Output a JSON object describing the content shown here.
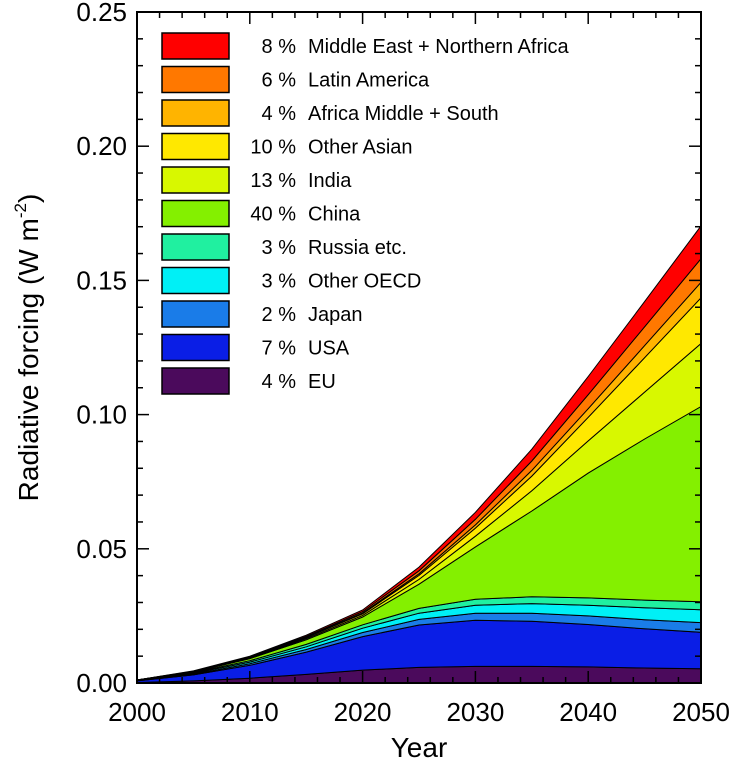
{
  "chart_data": {
    "type": "area",
    "stacked": true,
    "title": "",
    "xlabel": "Year",
    "ylabel_main": "Radiative forcing (W m",
    "ylabel_sup": "-2",
    "ylabel_close": ")",
    "xlim": [
      2000,
      2050
    ],
    "ylim": [
      0,
      0.25
    ],
    "x_ticks": [
      "2000",
      "2010",
      "2020",
      "2030",
      "2040",
      "2050"
    ],
    "y_ticks": [
      "0.00",
      "0.05",
      "0.10",
      "0.15",
      "0.20",
      "0.25"
    ],
    "grid": false,
    "legend_position": "top-left",
    "x": [
      2000,
      2005,
      2010,
      2015,
      2020,
      2025,
      2030,
      2035,
      2040,
      2045,
      2050
    ],
    "series": [
      {
        "name": "EU",
        "percent": "4 %",
        "color": "#4b0a5c",
        "values": [
          0.0002,
          0.0008,
          0.0018,
          0.0032,
          0.0048,
          0.0058,
          0.0062,
          0.0062,
          0.006,
          0.0056,
          0.0053
        ]
      },
      {
        "name": "USA",
        "percent": "7 %",
        "color": "#0a1ee6",
        "values": [
          0.0006,
          0.0022,
          0.0048,
          0.0083,
          0.0125,
          0.0158,
          0.0172,
          0.0168,
          0.0158,
          0.0146,
          0.0136
        ]
      },
      {
        "name": "Japan",
        "percent": "2 %",
        "color": "#1a7ce8",
        "values": [
          0.0001,
          0.0003,
          0.0006,
          0.001,
          0.0015,
          0.0021,
          0.0026,
          0.003,
          0.0032,
          0.0034,
          0.0036
        ]
      },
      {
        "name": "Other OECD",
        "percent": "3 %",
        "color": "#00f0f6",
        "values": [
          0.0001,
          0.0003,
          0.0006,
          0.001,
          0.0016,
          0.0023,
          0.003,
          0.0036,
          0.004,
          0.0044,
          0.0048
        ]
      },
      {
        "name": "Russia etc.",
        "percent": "3 %",
        "color": "#20f0a0",
        "values": [
          0.0001,
          0.0003,
          0.0005,
          0.0009,
          0.0013,
          0.0018,
          0.0022,
          0.0025,
          0.0027,
          0.0029,
          0.003
        ]
      },
      {
        "name": "China",
        "percent": "40 %",
        "color": "#84f000",
        "values": [
          0.0,
          0.0002,
          0.0008,
          0.0017,
          0.0029,
          0.009,
          0.0195,
          0.032,
          0.0465,
          0.06,
          0.0727
        ]
      },
      {
        "name": "India",
        "percent": "13 %",
        "color": "#d8f800",
        "values": [
          0.0,
          0.0001,
          0.0002,
          0.0004,
          0.0006,
          0.0018,
          0.004,
          0.0075,
          0.012,
          0.0175,
          0.0235
        ]
      },
      {
        "name": "Other Asian",
        "percent": "10 %",
        "color": "#ffe800",
        "values": [
          0.0,
          0.0001,
          0.0002,
          0.0004,
          0.0006,
          0.0015,
          0.003,
          0.0055,
          0.0088,
          0.0128,
          0.017
        ]
      },
      {
        "name": "Africa Middle + South",
        "percent": "4 %",
        "color": "#ffb400",
        "values": [
          0.0,
          0.0,
          0.0001,
          0.0002,
          0.0003,
          0.0006,
          0.0012,
          0.0021,
          0.0032,
          0.0045,
          0.0058
        ]
      },
      {
        "name": "Latin America",
        "percent": "6 %",
        "color": "#ff7800",
        "values": [
          0.0,
          0.0001,
          0.0002,
          0.0003,
          0.0005,
          0.0011,
          0.0021,
          0.0035,
          0.0052,
          0.007,
          0.0088
        ]
      },
      {
        "name": "Middle East + Northern Africa",
        "percent": "8 %",
        "color": "#ff0000",
        "values": [
          0.0,
          0.0001,
          0.0002,
          0.0004,
          0.0006,
          0.0014,
          0.0026,
          0.0044,
          0.0068,
          0.0094,
          0.0122
        ]
      }
    ]
  }
}
